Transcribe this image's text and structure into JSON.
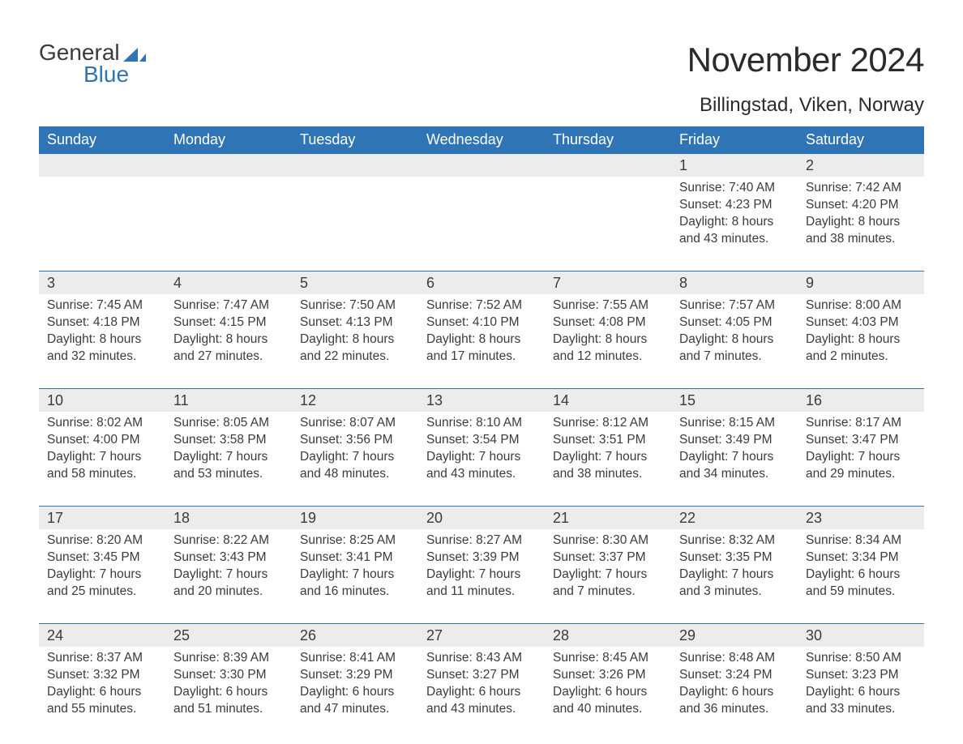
{
  "logo": {
    "text1": "General",
    "text2": "Blue",
    "flag_color": "#2f75b5"
  },
  "header": {
    "month_title": "November 2024",
    "location": "Billingstad, Viken, Norway"
  },
  "style": {
    "header_bg": "#2f75b5",
    "header_fg": "#ffffff",
    "row_divider": "#2f75b5",
    "daynum_bg": "#ececec",
    "text_color": "#3b3b3b",
    "background": "#ffffff",
    "font_family": "Arial, Helvetica, sans-serif",
    "title_fontsize_pt": 32,
    "location_fontsize_pt": 18,
    "header_fontsize_pt": 14,
    "body_fontsize_pt": 12
  },
  "calendar": {
    "day_headers": [
      "Sunday",
      "Monday",
      "Tuesday",
      "Wednesday",
      "Thursday",
      "Friday",
      "Saturday"
    ],
    "weeks": [
      [
        null,
        null,
        null,
        null,
        null,
        {
          "day": "1",
          "sunrise": "Sunrise: 7:40 AM",
          "sunset": "Sunset: 4:23 PM",
          "daylight1": "Daylight: 8 hours",
          "daylight2": "and 43 minutes."
        },
        {
          "day": "2",
          "sunrise": "Sunrise: 7:42 AM",
          "sunset": "Sunset: 4:20 PM",
          "daylight1": "Daylight: 8 hours",
          "daylight2": "and 38 minutes."
        }
      ],
      [
        {
          "day": "3",
          "sunrise": "Sunrise: 7:45 AM",
          "sunset": "Sunset: 4:18 PM",
          "daylight1": "Daylight: 8 hours",
          "daylight2": "and 32 minutes."
        },
        {
          "day": "4",
          "sunrise": "Sunrise: 7:47 AM",
          "sunset": "Sunset: 4:15 PM",
          "daylight1": "Daylight: 8 hours",
          "daylight2": "and 27 minutes."
        },
        {
          "day": "5",
          "sunrise": "Sunrise: 7:50 AM",
          "sunset": "Sunset: 4:13 PM",
          "daylight1": "Daylight: 8 hours",
          "daylight2": "and 22 minutes."
        },
        {
          "day": "6",
          "sunrise": "Sunrise: 7:52 AM",
          "sunset": "Sunset: 4:10 PM",
          "daylight1": "Daylight: 8 hours",
          "daylight2": "and 17 minutes."
        },
        {
          "day": "7",
          "sunrise": "Sunrise: 7:55 AM",
          "sunset": "Sunset: 4:08 PM",
          "daylight1": "Daylight: 8 hours",
          "daylight2": "and 12 minutes."
        },
        {
          "day": "8",
          "sunrise": "Sunrise: 7:57 AM",
          "sunset": "Sunset: 4:05 PM",
          "daylight1": "Daylight: 8 hours",
          "daylight2": "and 7 minutes."
        },
        {
          "day": "9",
          "sunrise": "Sunrise: 8:00 AM",
          "sunset": "Sunset: 4:03 PM",
          "daylight1": "Daylight: 8 hours",
          "daylight2": "and 2 minutes."
        }
      ],
      [
        {
          "day": "10",
          "sunrise": "Sunrise: 8:02 AM",
          "sunset": "Sunset: 4:00 PM",
          "daylight1": "Daylight: 7 hours",
          "daylight2": "and 58 minutes."
        },
        {
          "day": "11",
          "sunrise": "Sunrise: 8:05 AM",
          "sunset": "Sunset: 3:58 PM",
          "daylight1": "Daylight: 7 hours",
          "daylight2": "and 53 minutes."
        },
        {
          "day": "12",
          "sunrise": "Sunrise: 8:07 AM",
          "sunset": "Sunset: 3:56 PM",
          "daylight1": "Daylight: 7 hours",
          "daylight2": "and 48 minutes."
        },
        {
          "day": "13",
          "sunrise": "Sunrise: 8:10 AM",
          "sunset": "Sunset: 3:54 PM",
          "daylight1": "Daylight: 7 hours",
          "daylight2": "and 43 minutes."
        },
        {
          "day": "14",
          "sunrise": "Sunrise: 8:12 AM",
          "sunset": "Sunset: 3:51 PM",
          "daylight1": "Daylight: 7 hours",
          "daylight2": "and 38 minutes."
        },
        {
          "day": "15",
          "sunrise": "Sunrise: 8:15 AM",
          "sunset": "Sunset: 3:49 PM",
          "daylight1": "Daylight: 7 hours",
          "daylight2": "and 34 minutes."
        },
        {
          "day": "16",
          "sunrise": "Sunrise: 8:17 AM",
          "sunset": "Sunset: 3:47 PM",
          "daylight1": "Daylight: 7 hours",
          "daylight2": "and 29 minutes."
        }
      ],
      [
        {
          "day": "17",
          "sunrise": "Sunrise: 8:20 AM",
          "sunset": "Sunset: 3:45 PM",
          "daylight1": "Daylight: 7 hours",
          "daylight2": "and 25 minutes."
        },
        {
          "day": "18",
          "sunrise": "Sunrise: 8:22 AM",
          "sunset": "Sunset: 3:43 PM",
          "daylight1": "Daylight: 7 hours",
          "daylight2": "and 20 minutes."
        },
        {
          "day": "19",
          "sunrise": "Sunrise: 8:25 AM",
          "sunset": "Sunset: 3:41 PM",
          "daylight1": "Daylight: 7 hours",
          "daylight2": "and 16 minutes."
        },
        {
          "day": "20",
          "sunrise": "Sunrise: 8:27 AM",
          "sunset": "Sunset: 3:39 PM",
          "daylight1": "Daylight: 7 hours",
          "daylight2": "and 11 minutes."
        },
        {
          "day": "21",
          "sunrise": "Sunrise: 8:30 AM",
          "sunset": "Sunset: 3:37 PM",
          "daylight1": "Daylight: 7 hours",
          "daylight2": "and 7 minutes."
        },
        {
          "day": "22",
          "sunrise": "Sunrise: 8:32 AM",
          "sunset": "Sunset: 3:35 PM",
          "daylight1": "Daylight: 7 hours",
          "daylight2": "and 3 minutes."
        },
        {
          "day": "23",
          "sunrise": "Sunrise: 8:34 AM",
          "sunset": "Sunset: 3:34 PM",
          "daylight1": "Daylight: 6 hours",
          "daylight2": "and 59 minutes."
        }
      ],
      [
        {
          "day": "24",
          "sunrise": "Sunrise: 8:37 AM",
          "sunset": "Sunset: 3:32 PM",
          "daylight1": "Daylight: 6 hours",
          "daylight2": "and 55 minutes."
        },
        {
          "day": "25",
          "sunrise": "Sunrise: 8:39 AM",
          "sunset": "Sunset: 3:30 PM",
          "daylight1": "Daylight: 6 hours",
          "daylight2": "and 51 minutes."
        },
        {
          "day": "26",
          "sunrise": "Sunrise: 8:41 AM",
          "sunset": "Sunset: 3:29 PM",
          "daylight1": "Daylight: 6 hours",
          "daylight2": "and 47 minutes."
        },
        {
          "day": "27",
          "sunrise": "Sunrise: 8:43 AM",
          "sunset": "Sunset: 3:27 PM",
          "daylight1": "Daylight: 6 hours",
          "daylight2": "and 43 minutes."
        },
        {
          "day": "28",
          "sunrise": "Sunrise: 8:45 AM",
          "sunset": "Sunset: 3:26 PM",
          "daylight1": "Daylight: 6 hours",
          "daylight2": "and 40 minutes."
        },
        {
          "day": "29",
          "sunrise": "Sunrise: 8:48 AM",
          "sunset": "Sunset: 3:24 PM",
          "daylight1": "Daylight: 6 hours",
          "daylight2": "and 36 minutes."
        },
        {
          "day": "30",
          "sunrise": "Sunrise: 8:50 AM",
          "sunset": "Sunset: 3:23 PM",
          "daylight1": "Daylight: 6 hours",
          "daylight2": "and 33 minutes."
        }
      ]
    ]
  }
}
